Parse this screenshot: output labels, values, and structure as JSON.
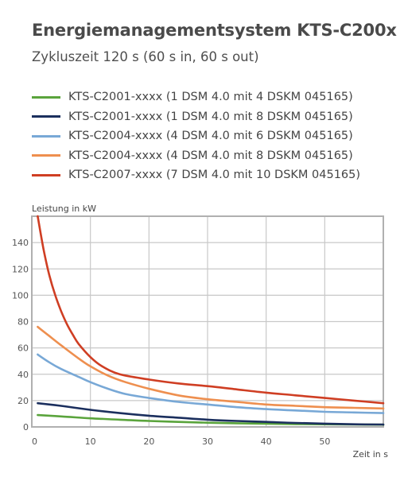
{
  "title": "Energiemanagementsystem KTS-C200x",
  "subtitle": "Zykluszeit 120 s (60 s in, 60 s out)",
  "legend": [
    {
      "label": "KTS-C2001-xxxx (1 DSM 4.0 mit 4 DSKM 045165)",
      "color": "#5aa43c"
    },
    {
      "label": "KTS-C2001-xxxx (1 DSM 4.0 mit 8 DSKM 045165)",
      "color": "#1b2f5e"
    },
    {
      "label": "KTS-C2004-xxxx (4 DSM 4.0 mit 6 DSKM 045165)",
      "color": "#78a8d6"
    },
    {
      "label": "KTS-C2004-xxxx (4 DSM 4.0 mit 8 DSKM 045165)",
      "color": "#ee8f4f"
    },
    {
      "label": "KTS-C2007-xxxx (7 DSM 4.0 mit 10 DSKM 045165)",
      "color": "#cf3e23"
    }
  ],
  "chart_data": {
    "type": "line",
    "ylabel": "Leistung in kW",
    "xlabel": "Zeit in s",
    "xlim": [
      0,
      60
    ],
    "ylim": [
      0,
      160
    ],
    "xticks": [
      0,
      10,
      20,
      30,
      40,
      50
    ],
    "yticks": [
      0,
      20,
      40,
      60,
      80,
      100,
      120,
      140
    ],
    "grid": true,
    "series": [
      {
        "name": "KTS-C2001-xxxx (1 DSM 4.0 mit 4 DSKM 045165)",
        "color": "#5aa43c",
        "x": [
          1,
          5,
          10,
          15,
          20,
          25,
          30,
          35,
          40,
          45,
          50,
          55,
          60
        ],
        "y": [
          9,
          8,
          6.5,
          5.5,
          4.5,
          3.8,
          3.2,
          2.8,
          2.5,
          2.2,
          2,
          1.8,
          1.7
        ]
      },
      {
        "name": "KTS-C2001-xxxx (1 DSM 4.0 mit 8 DSKM 045165)",
        "color": "#1b2f5e",
        "x": [
          1,
          5,
          10,
          15,
          20,
          25,
          30,
          35,
          40,
          45,
          50,
          55,
          60
        ],
        "y": [
          18,
          16,
          13,
          10.5,
          8.5,
          7,
          5.5,
          4.5,
          3.8,
          3,
          2.5,
          2,
          1.8
        ]
      },
      {
        "name": "KTS-C2004-xxxx (4 DSM 4.0 mit 6 DSKM 045165)",
        "color": "#78a8d6",
        "x": [
          1,
          3,
          5,
          8,
          10,
          13,
          16,
          20,
          25,
          30,
          35,
          40,
          45,
          50,
          55,
          60
        ],
        "y": [
          55,
          49,
          44,
          38,
          34,
          29,
          25,
          22,
          19,
          17,
          15,
          13.5,
          12.5,
          11.5,
          11,
          10.5
        ]
      },
      {
        "name": "KTS-C2004-xxxx (4 DSM 4.0 mit 8 DSKM 045165)",
        "color": "#ee8f4f",
        "x": [
          1,
          3,
          5,
          8,
          10,
          13,
          16,
          20,
          25,
          30,
          35,
          40,
          45,
          50,
          55,
          60
        ],
        "y": [
          76,
          69,
          62,
          52,
          46,
          39,
          34,
          29,
          24,
          21,
          19,
          17,
          16,
          15,
          14.5,
          14
        ]
      },
      {
        "name": "KTS-C2007-xxxx (7 DSM 4.0 mit 10 DSKM 045165)",
        "color": "#cf3e23",
        "x": [
          1,
          2,
          3,
          4,
          5,
          6,
          7,
          8,
          10,
          12,
          15,
          20,
          25,
          30,
          35,
          40,
          45,
          50,
          55,
          60
        ],
        "y": [
          160,
          135,
          115,
          100,
          88,
          78,
          70,
          63,
          53,
          46,
          40,
          36,
          33,
          31,
          28.5,
          26,
          24,
          22,
          20,
          18
        ]
      }
    ]
  }
}
